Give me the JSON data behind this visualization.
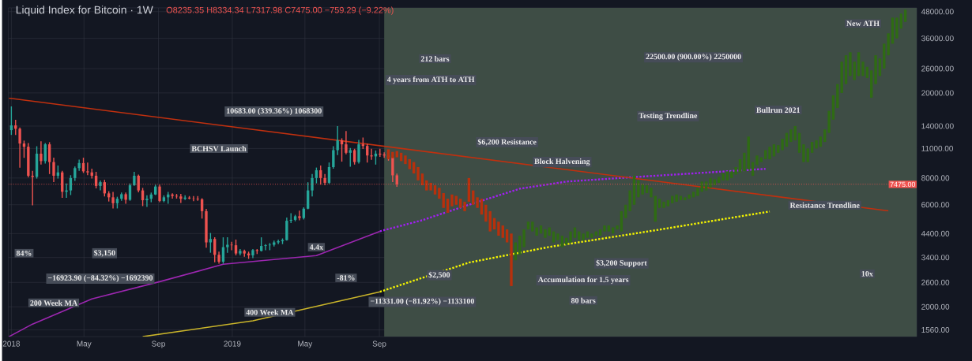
{
  "chart_data": {
    "type": "candlestick",
    "title": "Liquid Index for Bitcoin · 1W",
    "subtitle": "O8235.35 H8334.34 L7317.98 C7475.00 −759.29 (−9.22%)",
    "log": "y",
    "grid": true,
    "xlim": [
      "2017-12-27",
      "2022-02-05"
    ],
    "ylim": [
      1450,
      50000
    ],
    "xticks": [
      {
        "value": "2018-01-01",
        "label": "2018"
      },
      {
        "value": "2018-05-01",
        "label": "May"
      },
      {
        "value": "2018-09-01",
        "label": "Sep"
      },
      {
        "value": "2019-01-01",
        "label": "2019"
      },
      {
        "value": "2019-05-01",
        "label": "May"
      },
      {
        "value": "2019-09-01",
        "label": "Sep"
      }
    ],
    "yticks": [
      {
        "value": 1560,
        "label": "1560.00"
      },
      {
        "value": 2000,
        "label": "2000.00"
      },
      {
        "value": 2600,
        "label": "2600.00"
      },
      {
        "value": 3400,
        "label": "3400.00"
      },
      {
        "value": 4400,
        "label": "4400.00"
      },
      {
        "value": 6000,
        "label": "6000.00"
      },
      {
        "value": 8000,
        "label": "8000.00"
      },
      {
        "value": 11000,
        "label": "11000.00"
      },
      {
        "value": 14000,
        "label": "14000.00"
      },
      {
        "value": 20000,
        "label": "20000.00"
      },
      {
        "value": 26000,
        "label": "26000.00"
      },
      {
        "value": 36000,
        "label": "36000.00"
      },
      {
        "value": 48000,
        "label": "48000.00"
      }
    ],
    "bands": [
      {
        "axis": "x",
        "from": "2019-09-09",
        "to": "2022-02-05",
        "color": "#3e4d45"
      }
    ],
    "ref_lines": [
      {
        "axis": "y",
        "value": 7475,
        "label": "7475.00",
        "color": "#f05350",
        "line_style": "dotted"
      }
    ],
    "series": [
      {
        "x": [
          "2018-01-01",
          "2018-01-08",
          "2018-01-15",
          "2018-01-22",
          "2018-01-29",
          "2018-02-05",
          "2018-02-12",
          "2018-02-19",
          "2018-02-26",
          "2018-03-05",
          "2018-03-12",
          "2018-03-19",
          "2018-03-26",
          "2018-04-02",
          "2018-04-09",
          "2018-04-16",
          "2018-04-23",
          "2018-04-30",
          "2018-05-07",
          "2018-05-14",
          "2018-05-21",
          "2018-05-28",
          "2018-06-04",
          "2018-06-11",
          "2018-06-18",
          "2018-06-25",
          "2018-07-02",
          "2018-07-09",
          "2018-07-16",
          "2018-07-23",
          "2018-07-30",
          "2018-08-06",
          "2018-08-13",
          "2018-08-20",
          "2018-08-27",
          "2018-09-03",
          "2018-09-10",
          "2018-09-17",
          "2018-09-24",
          "2018-10-01",
          "2018-10-08",
          "2018-10-15",
          "2018-10-22",
          "2018-10-29",
          "2018-11-05",
          "2018-11-12",
          "2018-11-19",
          "2018-11-26",
          "2018-12-03",
          "2018-12-10",
          "2018-12-17",
          "2018-12-24",
          "2018-12-31",
          "2019-01-07",
          "2019-01-14",
          "2019-01-21",
          "2019-01-28",
          "2019-02-04",
          "2019-02-11",
          "2019-02-18",
          "2019-02-25",
          "2019-03-04",
          "2019-03-11",
          "2019-03-18",
          "2019-03-25",
          "2019-04-01",
          "2019-04-08",
          "2019-04-15",
          "2019-04-22",
          "2019-04-29",
          "2019-05-06",
          "2019-05-13",
          "2019-05-20",
          "2019-05-27",
          "2019-06-03",
          "2019-06-10",
          "2019-06-17",
          "2019-06-24",
          "2019-07-01",
          "2019-07-08",
          "2019-07-15",
          "2019-07-22",
          "2019-07-29",
          "2019-08-05",
          "2019-08-12",
          "2019-08-19",
          "2019-08-26",
          "2019-09-02",
          "2019-09-09",
          "2019-09-16",
          "2019-09-23",
          "2019-09-30"
        ],
        "ohlc": [
          [
            13400,
            17200,
            12800,
            14100
          ],
          [
            14100,
            14900,
            12800,
            13600
          ],
          [
            13600,
            13700,
            9000,
            11600
          ],
          [
            11600,
            11900,
            10000,
            11200
          ],
          [
            11200,
            11600,
            8100,
            8200
          ],
          [
            8200,
            8600,
            6000,
            8100
          ],
          [
            8100,
            11200,
            8000,
            10400
          ],
          [
            10400,
            11800,
            9300,
            9600
          ],
          [
            9600,
            11600,
            9400,
            11500
          ],
          [
            11500,
            11700,
            8400,
            9500
          ],
          [
            9500,
            9900,
            7700,
            8200
          ],
          [
            8200,
            9100,
            8000,
            8500
          ],
          [
            8500,
            8600,
            6500,
            6900
          ],
          [
            6900,
            7500,
            6500,
            7000
          ],
          [
            7000,
            8200,
            6700,
            8000
          ],
          [
            8000,
            9000,
            7800,
            8900
          ],
          [
            8900,
            9700,
            8700,
            9400
          ],
          [
            9400,
            9900,
            8500,
            8600
          ],
          [
            8600,
            9400,
            8300,
            8500
          ],
          [
            8500,
            8800,
            8000,
            8200
          ],
          [
            8200,
            8500,
            7200,
            7350
          ],
          [
            7350,
            7750,
            7050,
            7650
          ],
          [
            7650,
            7800,
            6600,
            6780
          ],
          [
            6780,
            6900,
            6250,
            6500
          ],
          [
            6500,
            6850,
            5800,
            6100
          ],
          [
            6100,
            6500,
            5800,
            6400
          ],
          [
            6400,
            6800,
            6300,
            6720
          ],
          [
            6720,
            6800,
            6100,
            6330
          ],
          [
            6330,
            7500,
            6300,
            7400
          ],
          [
            7400,
            8500,
            7400,
            8200
          ],
          [
            8200,
            8250,
            6900,
            7000
          ],
          [
            7000,
            7150,
            5950,
            6300
          ],
          [
            6300,
            6600,
            5900,
            6400
          ],
          [
            6400,
            6800,
            6200,
            6700
          ],
          [
            6700,
            7400,
            6700,
            7300
          ],
          [
            7300,
            7400,
            6200,
            6250
          ],
          [
            6250,
            6600,
            6200,
            6500
          ],
          [
            6500,
            6850,
            6100,
            6700
          ],
          [
            6700,
            6750,
            6450,
            6600
          ],
          [
            6600,
            6700,
            6450,
            6560
          ],
          [
            6560,
            6700,
            6150,
            6400
          ],
          [
            6400,
            6600,
            6350,
            6480
          ],
          [
            6480,
            6550,
            6400,
            6420
          ],
          [
            6420,
            6550,
            6270,
            6400
          ],
          [
            6400,
            6550,
            6300,
            6360
          ],
          [
            6360,
            6400,
            5200,
            5600
          ],
          [
            5600,
            5700,
            3800,
            4000
          ],
          [
            4000,
            4400,
            3600,
            4150
          ],
          [
            4150,
            4200,
            3250,
            3500
          ],
          [
            3500,
            3600,
            3200,
            3250
          ],
          [
            3250,
            4200,
            3200,
            3800
          ],
          [
            3800,
            4200,
            3600,
            3900
          ],
          [
            3900,
            4000,
            3700,
            3880
          ],
          [
            3880,
            4100,
            3500,
            3550
          ],
          [
            3550,
            3700,
            3500,
            3650
          ],
          [
            3650,
            3680,
            3450,
            3550
          ],
          [
            3550,
            3600,
            3370,
            3480
          ],
          [
            3480,
            3700,
            3400,
            3680
          ],
          [
            3680,
            3700,
            3550,
            3650
          ],
          [
            3650,
            4200,
            3650,
            3850
          ],
          [
            3850,
            3900,
            3700,
            3880
          ],
          [
            3880,
            3950,
            3700,
            3900
          ],
          [
            3900,
            4050,
            3850,
            4000
          ],
          [
            4000,
            4100,
            3950,
            4050
          ],
          [
            4050,
            4150,
            3950,
            4100
          ],
          [
            4100,
            5200,
            4100,
            5050
          ],
          [
            5050,
            5450,
            4950,
            5100
          ],
          [
            5100,
            5350,
            5050,
            5300
          ],
          [
            5300,
            5600,
            5100,
            5200
          ],
          [
            5200,
            5800,
            5150,
            5750
          ],
          [
            5750,
            7600,
            5750,
            7000
          ],
          [
            7000,
            8300,
            6600,
            8000
          ],
          [
            8000,
            8900,
            7600,
            8700
          ],
          [
            8700,
            9100,
            7500,
            8000
          ],
          [
            8000,
            8300,
            7450,
            7600
          ],
          [
            7600,
            9400,
            7550,
            9000
          ],
          [
            9000,
            11200,
            8900,
            10800
          ],
          [
            10800,
            13900,
            10300,
            12000
          ],
          [
            12000,
            12200,
            9600,
            11500
          ],
          [
            11500,
            13200,
            10400,
            10500
          ],
          [
            10500,
            11000,
            9100,
            10800
          ],
          [
            10800,
            10900,
            9300,
            9500
          ],
          [
            9500,
            12000,
            9400,
            11500
          ],
          [
            11500,
            12300,
            11000,
            11300
          ],
          [
            11300,
            11500,
            9500,
            10200
          ],
          [
            10200,
            10900,
            9800,
            10100
          ],
          [
            10100,
            10700,
            9300,
            10400
          ],
          [
            10400,
            10900,
            10100,
            10300
          ],
          [
            10300,
            10500,
            10000,
            10200
          ],
          [
            10200,
            10300,
            9700,
            10000
          ],
          [
            10000,
            10100,
            7700,
            8235.35
          ],
          [
            8235.35,
            8334.34,
            7317.98,
            7475
          ]
        ],
        "colors": [
          "#26a69a",
          "#ef5350",
          "#ef5350",
          "#ef5350",
          "#ef5350",
          "#ef5350",
          "#26a69a",
          "#ef5350",
          "#26a69a",
          "#ef5350",
          "#ef5350",
          "#26a69a",
          "#ef5350",
          "#26a69a",
          "#26a69a",
          "#26a69a",
          "#26a69a",
          "#ef5350",
          "#ef5350",
          "#ef5350",
          "#ef5350",
          "#26a69a",
          "#ef5350",
          "#ef5350",
          "#ef5350",
          "#26a69a",
          "#26a69a",
          "#ef5350",
          "#26a69a",
          "#26a69a",
          "#ef5350",
          "#ef5350",
          "#26a69a",
          "#26a69a",
          "#26a69a",
          "#ef5350",
          "#26a69a",
          "#26a69a",
          "#ef5350",
          "#ef5350",
          "#ef5350",
          "#26a69a",
          "#ef5350",
          "#ef5350",
          "#ef5350",
          "#ef5350",
          "#ef5350",
          "#26a69a",
          "#ef5350",
          "#ef5350",
          "#26a69a",
          "#26a69a",
          "#ef5350",
          "#ef5350",
          "#26a69a",
          "#ef5350",
          "#ef5350",
          "#26a69a",
          "#ef5350",
          "#26a69a",
          "#26a69a",
          "#26a69a",
          "#26a69a",
          "#26a69a",
          "#26a69a",
          "#26a69a",
          "#26a69a",
          "#26a69a",
          "#ef5350",
          "#26a69a",
          "#26a69a",
          "#26a69a",
          "#26a69a",
          "#ef5350",
          "#ef5350",
          "#26a69a",
          "#26a69a",
          "#26a69a",
          "#ef5350",
          "#ef5350",
          "#26a69a",
          "#ef5350",
          "#26a69a",
          "#ef5350",
          "#ef5350",
          "#ef5350",
          "#26a69a",
          "#ef5350",
          "#ef5350",
          "#ef5350",
          "#ef5350",
          "#ef5350"
        ]
      },
      {
        "color": "#b8300c",
        "x": [
          "2019-09-16",
          "2019-09-23",
          "2019-09-30",
          "2019-10-07",
          "2019-10-14",
          "2019-10-21",
          "2019-10-28",
          "2019-11-04",
          "2019-11-11",
          "2019-11-18",
          "2019-11-25",
          "2019-12-02",
          "2019-12-09",
          "2019-12-16",
          "2019-12-23",
          "2019-12-30",
          "2020-01-06",
          "2020-01-13",
          "2020-01-20",
          "2020-01-27",
          "2020-02-03",
          "2020-02-10",
          "2020-02-17",
          "2020-02-24",
          "2020-03-02",
          "2020-03-09",
          "2020-03-16",
          "2020-03-23",
          "2020-03-30",
          "2020-04-06"
        ],
        "ohlc": [
          [
            10900,
            10900,
            9800,
            9800
          ],
          [
            10600,
            10600,
            9900,
            9900
          ],
          [
            10700,
            10700,
            10000,
            10000
          ],
          [
            10500,
            10500,
            9600,
            9600
          ],
          [
            10200,
            10200,
            9300,
            9300
          ],
          [
            9800,
            9800,
            8800,
            8800
          ],
          [
            9500,
            9500,
            8400,
            8400
          ],
          [
            9000,
            9000,
            7800,
            7800
          ],
          [
            8400,
            8400,
            7400,
            7400
          ],
          [
            7800,
            7800,
            7000,
            7000
          ],
          [
            7600,
            7600,
            7000,
            7000
          ],
          [
            7400,
            7400,
            6700,
            6700
          ],
          [
            7200,
            7200,
            6400,
            6400
          ],
          [
            6800,
            6800,
            5800,
            5800
          ],
          [
            6400,
            6400,
            5500,
            5500
          ],
          [
            6700,
            6700,
            5900,
            5900
          ],
          [
            6600,
            6600,
            6000,
            6000
          ],
          [
            6400,
            6400,
            5800,
            5800
          ],
          [
            6200,
            6200,
            5600,
            5600
          ],
          [
            8000,
            8000,
            6200,
            6200
          ],
          [
            7000,
            7000,
            6000,
            6000
          ],
          [
            6500,
            6500,
            5800,
            5800
          ],
          [
            6400,
            6400,
            5400,
            5400
          ],
          [
            6000,
            6000,
            5000,
            5000
          ],
          [
            5600,
            5600,
            4500,
            4500
          ],
          [
            5200,
            5200,
            4600,
            4600
          ],
          [
            5000,
            5000,
            4300,
            4300
          ],
          [
            4800,
            4800,
            4200,
            4200
          ],
          [
            4600,
            4600,
            4000,
            4000
          ],
          [
            4400,
            4400,
            2500,
            2500
          ]
        ]
      },
      {
        "color": "#2f6b14",
        "x": [
          "2020-04-13",
          "2020-04-20",
          "2020-04-27",
          "2020-05-04",
          "2020-05-11",
          "2020-05-18",
          "2020-05-25",
          "2020-06-01",
          "2020-06-08",
          "2020-06-15",
          "2020-06-22",
          "2020-06-29",
          "2020-07-06",
          "2020-07-13",
          "2020-07-20",
          "2020-07-27",
          "2020-08-03",
          "2020-08-10",
          "2020-08-17",
          "2020-08-24",
          "2020-08-31",
          "2020-09-07",
          "2020-09-14",
          "2020-09-21",
          "2020-09-28",
          "2020-10-05",
          "2020-10-12",
          "2020-10-19",
          "2020-10-26",
          "2020-11-02",
          "2020-11-09",
          "2020-11-16",
          "2020-11-23",
          "2020-11-30",
          "2020-12-07",
          "2020-12-14",
          "2020-12-21",
          "2020-12-28",
          "2021-01-04",
          "2021-01-11",
          "2021-01-18",
          "2021-01-25",
          "2021-02-01",
          "2021-02-08",
          "2021-02-15",
          "2021-02-22",
          "2021-03-01",
          "2021-03-08",
          "2021-03-15",
          "2021-03-22",
          "2021-03-29",
          "2021-04-05",
          "2021-04-12",
          "2021-04-19",
          "2021-04-26",
          "2021-05-03",
          "2021-05-10",
          "2021-05-17",
          "2021-05-24",
          "2021-05-31",
          "2021-06-07",
          "2021-06-14",
          "2021-06-21",
          "2021-06-28",
          "2021-07-05",
          "2021-07-12",
          "2021-07-19",
          "2021-07-26",
          "2021-08-02",
          "2021-08-09",
          "2021-08-16",
          "2021-08-23",
          "2021-08-30",
          "2021-09-06",
          "2021-09-13",
          "2021-09-20",
          "2021-09-27",
          "2021-10-04",
          "2021-10-11",
          "2021-10-18",
          "2021-10-25",
          "2021-11-01",
          "2021-11-08",
          "2021-11-15",
          "2021-11-22",
          "2021-11-29",
          "2021-12-06",
          "2021-12-13",
          "2021-12-20",
          "2021-12-27",
          "2022-01-03",
          "2022-01-10",
          "2022-01-17"
        ],
        "ohlc": [
          [
            3300,
            4000,
            3300,
            4000
          ],
          [
            3500,
            4300,
            3500,
            4300
          ],
          [
            3800,
            4600,
            3800,
            4600
          ],
          [
            4600,
            5000,
            4600,
            5000
          ],
          [
            4500,
            5000,
            4500,
            5000
          ],
          [
            4300,
            4700,
            4300,
            4700
          ],
          [
            4400,
            4800,
            4400,
            4800
          ],
          [
            4200,
            4600,
            4200,
            4600
          ],
          [
            4300,
            4700,
            4300,
            4700
          ],
          [
            4000,
            4500,
            4000,
            4500
          ],
          [
            4100,
            4400,
            4100,
            4400
          ],
          [
            3800,
            4300,
            3800,
            4300
          ],
          [
            3900,
            4200,
            3900,
            4200
          ],
          [
            4000,
            4500,
            4000,
            4500
          ],
          [
            4200,
            4700,
            4200,
            4700
          ],
          [
            4100,
            4500,
            4100,
            4500
          ],
          [
            4100,
            4400,
            4100,
            4400
          ],
          [
            4200,
            4500,
            4200,
            4500
          ],
          [
            4200,
            4400,
            4200,
            4400
          ],
          [
            4300,
            4500,
            4300,
            4500
          ],
          [
            4300,
            4600,
            4300,
            4600
          ],
          [
            4500,
            4800,
            4500,
            4800
          ],
          [
            4500,
            4800,
            4500,
            4800
          ],
          [
            4400,
            4700,
            4400,
            4700
          ],
          [
            4600,
            4800,
            4600,
            4800
          ],
          [
            4500,
            5600,
            4500,
            5600
          ],
          [
            5200,
            6000,
            5200,
            6000
          ],
          [
            5600,
            7000,
            5600,
            7000
          ],
          [
            6000,
            8200,
            6000,
            8200
          ],
          [
            6500,
            7800,
            6500,
            7800
          ],
          [
            6700,
            7500,
            6700,
            7500
          ],
          [
            6800,
            7400,
            6800,
            7400
          ],
          [
            6500,
            7200,
            6500,
            7200
          ],
          [
            5000,
            6600,
            5000,
            6600
          ],
          [
            5800,
            6400,
            5800,
            6400
          ],
          [
            5800,
            6200,
            5800,
            6200
          ],
          [
            5900,
            6300,
            5900,
            6300
          ],
          [
            6100,
            6600,
            6100,
            6600
          ],
          [
            6200,
            6700,
            6200,
            6700
          ],
          [
            6300,
            6600,
            6300,
            6600
          ],
          [
            6300,
            6500,
            6300,
            6500
          ],
          [
            6400,
            6700,
            6400,
            6700
          ],
          [
            6500,
            6900,
            6500,
            6900
          ],
          [
            6600,
            7200,
            6600,
            7200
          ],
          [
            6900,
            7700,
            6900,
            7700
          ],
          [
            7000,
            7700,
            7000,
            7700
          ],
          [
            7200,
            8000,
            7200,
            8000
          ],
          [
            7400,
            7900,
            7400,
            7900
          ],
          [
            7600,
            8100,
            7600,
            8100
          ],
          [
            7800,
            8400,
            7800,
            8400
          ],
          [
            7800,
            8600,
            7800,
            8600
          ],
          [
            8000,
            8600,
            8000,
            8600
          ],
          [
            8300,
            9000,
            8300,
            9000
          ],
          [
            8500,
            9800,
            8500,
            9800
          ],
          [
            8600,
            10500,
            8600,
            10500
          ],
          [
            8800,
            12500,
            8800,
            12500
          ],
          [
            8200,
            9500,
            8200,
            9500
          ],
          [
            9200,
            10200,
            9200,
            10200
          ],
          [
            9500,
            10000,
            9500,
            10000
          ],
          [
            9800,
            10800,
            9800,
            10800
          ],
          [
            9800,
            11200,
            9800,
            11200
          ],
          [
            10100,
            11500,
            10100,
            11500
          ],
          [
            10500,
            11400,
            10500,
            11400
          ],
          [
            10800,
            12200,
            10800,
            12200
          ],
          [
            11200,
            13000,
            11200,
            13000
          ],
          [
            11800,
            13500,
            11800,
            13500
          ],
          [
            12000,
            14000,
            12000,
            14000
          ],
          [
            10500,
            13000,
            10500,
            13000
          ],
          [
            9500,
            11500,
            9500,
            11500
          ],
          [
            9500,
            11000,
            9500,
            11000
          ],
          [
            10500,
            11800,
            10500,
            11800
          ],
          [
            11000,
            12000,
            11000,
            12000
          ],
          [
            11200,
            12500,
            11200,
            12500
          ],
          [
            11800,
            13500,
            11800,
            13500
          ],
          [
            13000,
            16500,
            13000,
            16500
          ],
          [
            15000,
            19500,
            15000,
            19500
          ],
          [
            17000,
            22000,
            17000,
            22000
          ],
          [
            20000,
            28000,
            20000,
            28000
          ],
          [
            22000,
            30000,
            22000,
            30000
          ],
          [
            24000,
            31000,
            24000,
            31000
          ],
          [
            23000,
            28000,
            23000,
            28000
          ],
          [
            24000,
            31000,
            24000,
            31000
          ],
          [
            24000,
            28000,
            24000,
            28000
          ],
          [
            23500,
            26500,
            23500,
            26500
          ],
          [
            19000,
            25500,
            19000,
            25500
          ],
          [
            22000,
            30000,
            22000,
            30000
          ],
          [
            24000,
            29000,
            24000,
            29000
          ],
          [
            26000,
            34000,
            26000,
            34000
          ],
          [
            30000,
            38000,
            30000,
            38000
          ],
          [
            34000,
            45000,
            34000,
            45000
          ],
          [
            36000,
            45000,
            36000,
            45000
          ],
          [
            40000,
            47000,
            40000,
            47000
          ],
          [
            43000,
            49000,
            43000,
            49000
          ]
        ]
      },
      {
        "type": "line",
        "color": "#9c27b0",
        "x": [
          "2017-12-28",
          "2018-02-05",
          "2018-05-14",
          "2018-09-03",
          "2018-12-17",
          "2019-05-20",
          "2019-09-02"
        ],
        "values": [
          1450,
          1660,
          2175,
          2620,
          3160,
          3470,
          4510
        ]
      },
      {
        "type": "line",
        "color": "#a020f0",
        "line_style": "dotted",
        "x": [
          "2019-09-02",
          "2019-11-11",
          "2020-01-27",
          "2020-04-20",
          "2020-07-06",
          "2020-10-19",
          "2021-05-31"
        ],
        "values": [
          4510,
          5080,
          6000,
          7130,
          7700,
          8060,
          8830
        ]
      },
      {
        "type": "line",
        "color": "#c9b42a",
        "x": [
          "2018-08-06",
          "2019-02-04",
          "2019-09-02"
        ],
        "values": [
          1450,
          1720,
          2350
        ]
      },
      {
        "type": "line",
        "color": "#f5f500",
        "line_style": "dotted",
        "x": [
          "2019-09-02",
          "2020-01-27",
          "2020-06-08",
          "2020-12-07",
          "2021-06-07"
        ],
        "values": [
          2350,
          3220,
          3810,
          4590,
          5580
        ]
      },
      {
        "type": "line",
        "color": "#c0300f",
        "x": [
          "2017-12-28",
          "2021-12-20"
        ],
        "values": [
          18900,
          5620
        ]
      }
    ],
    "annotations": [
      {
        "text": "84%",
        "x": "2018-01-22",
        "y": 3560
      },
      {
        "text": "$3,150",
        "x": "2018-06-04",
        "y": 3560
      },
      "−16923.90 (−84.32%) −1692390",
      "200 Week MA",
      "BCHSV Launch",
      "10683.00 (339.36%) 1068300",
      {
        "text": "4.4x",
        "x": "2019-05-20",
        "y": 3800
      },
      {
        "text": "-81%",
        "x": "2019-07-08",
        "y": 2730
      },
      {
        "text": "400 Week MA",
        "x": "2019-03-04",
        "y": 1885
      },
      "−11331.00 (−81.92%) −1133100",
      {
        "text": "$2,500",
        "x": "2019-12-09",
        "y": 2810
      },
      "212 bars",
      "4 years from ATH to ATH",
      "$6,200 Resistance",
      "Block Halvening",
      "$3,200 Support",
      "Accumulation for 1.5 years",
      {
        "text": "80 bars",
        "x": "2020-08-03",
        "y": 2140
      },
      "22500.00 (900.00%) 2250000",
      "Testing Trendline",
      "Bullrun 2021",
      {
        "text": "Resistance Trendline",
        "x": "2021-09-06",
        "y": 5970
      },
      "New ATH",
      {
        "text": "10x",
        "x": "2021-11-15",
        "y": 2855
      }
    ]
  }
}
